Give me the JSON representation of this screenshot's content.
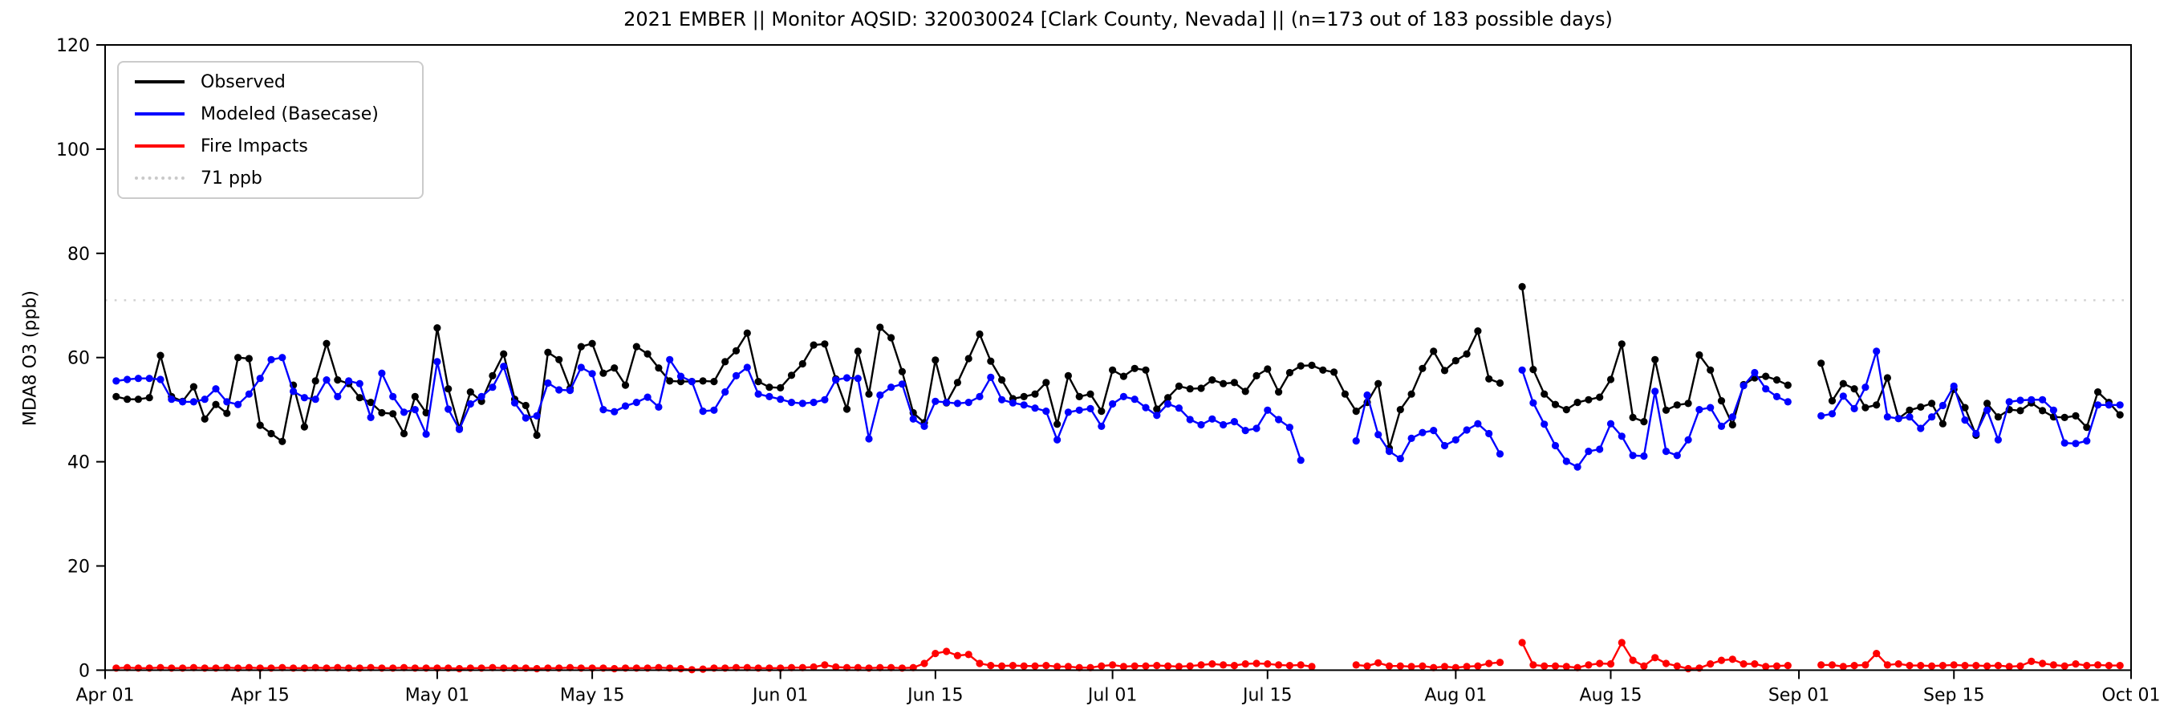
{
  "title": "2021 EMBER || Monitor AQSID: 320030024 [Clark County, Nevada] || (n=173 out of 183 possible days)",
  "axes": {
    "ylabel": "MDA8 O3 (ppb)",
    "ylim": [
      0,
      120
    ],
    "yticks": [
      0,
      20,
      40,
      60,
      80,
      100,
      120
    ],
    "grid": "off",
    "legend_position": "upper-left"
  },
  "threshold": {
    "label": "71 ppb",
    "value": 71,
    "color": "#d2d2d2"
  },
  "legend": {
    "entries": [
      {
        "label": "Observed",
        "color": "#000000",
        "style": "solid"
      },
      {
        "label": "Modeled (Basecase)",
        "color": "#0000ff",
        "style": "solid"
      },
      {
        "label": "Fire Impacts",
        "color": "#ff0000",
        "style": "solid"
      },
      {
        "label": "71 ppb",
        "color": "#d2d2d2",
        "style": "dotted"
      }
    ]
  },
  "chart_data": {
    "type": "line",
    "title": "2021 EMBER || Monitor AQSID: 320030024 [Clark County, Nevada] || (n=173 out of 183 possible days)",
    "xlabel": "",
    "ylabel": "MDA8 O3 (ppb)",
    "ylim": [
      0,
      120
    ],
    "yticks": [
      0,
      20,
      40,
      60,
      80,
      100,
      120
    ],
    "start_date": "2021-04-01",
    "n_days": 183,
    "x_ticks": [
      {
        "label": "Apr 01",
        "day": 0
      },
      {
        "label": "Apr 15",
        "day": 14
      },
      {
        "label": "May 01",
        "day": 30
      },
      {
        "label": "May 15",
        "day": 44
      },
      {
        "label": "Jun 01",
        "day": 61
      },
      {
        "label": "Jun 15",
        "day": 75
      },
      {
        "label": "Jul 01",
        "day": 91
      },
      {
        "label": "Jul 15",
        "day": 105
      },
      {
        "label": "Aug 01",
        "day": 122
      },
      {
        "label": "Aug 15",
        "day": 136
      },
      {
        "label": "Sep 01",
        "day": 153
      },
      {
        "label": "Sep 15",
        "day": 167
      },
      {
        "label": "Oct 01",
        "day": 183
      }
    ],
    "threshold_line": {
      "label": "71 ppb",
      "value": 71
    },
    "series": [
      {
        "name": "Observed",
        "color": "#000000",
        "values": [
          null,
          52.5,
          52,
          52,
          52.3,
          60.4,
          52.5,
          51.6,
          54.4,
          48.2,
          51,
          49.3,
          60,
          59.8,
          47,
          45.4,
          43.9,
          54.7,
          46.7,
          55.5,
          62.7,
          55.7,
          55,
          52.3,
          51.4,
          49.4,
          49.2,
          45.4,
          52.5,
          49.4,
          65.7,
          54,
          46.4,
          53.4,
          51.6,
          56.5,
          60.7,
          52,
          50.8,
          45.1,
          61,
          59.6,
          54.1,
          62.1,
          62.7,
          57,
          58,
          54.7,
          62.1,
          60.7,
          58,
          55.5,
          55.4,
          55.4,
          55.5,
          55.4,
          59.2,
          61.3,
          64.7,
          55.4,
          54.3,
          54.2,
          56.6,
          58.8,
          62.4,
          62.6,
          55.9,
          50.1,
          61.2,
          53,
          65.8,
          63.8,
          57.3,
          49.4,
          47.5,
          59.5,
          51.3,
          55.2,
          59.8,
          64.5,
          59.3,
          55.7,
          52.1,
          52.5,
          53,
          55.2,
          47.2,
          56.5,
          52.5,
          53,
          49.7,
          57.6,
          56.4,
          57.9,
          57.6,
          50.1,
          52.3,
          54.5,
          54,
          54.1,
          55.7,
          55,
          55.2,
          53.5,
          56.5,
          57.8,
          53.4,
          57.1,
          58.4,
          58.5,
          57.6,
          57.2,
          53,
          49.7,
          51.4,
          55,
          42.6,
          50,
          53,
          57.9,
          61.2,
          57.5,
          59.4,
          60.7,
          65.1,
          55.9,
          55.1,
          null,
          73.6,
          57.7,
          53,
          51,
          50,
          51.4,
          51.9,
          52.4,
          55.8,
          62.6,
          48.5,
          47.7,
          59.6,
          49.9,
          50.9,
          51.2,
          60.5,
          57.6,
          51.7,
          47.1,
          54.8,
          56.1,
          56.4,
          55.7,
          54.7,
          null,
          null,
          58.9,
          51.7,
          55,
          54,
          50.4,
          50.9,
          56.1,
          48.3,
          49.9,
          50.5,
          51.2,
          47.3,
          53.9,
          50.4,
          45.1,
          51.2,
          48.6,
          50,
          49.8,
          51.3,
          49.8,
          48.6,
          48.5,
          48.8,
          46.6,
          53.4,
          51.4,
          49
        ]
      },
      {
        "name": "Modeled (Basecase)",
        "color": "#0000ff",
        "values": [
          null,
          55.5,
          55.8,
          56,
          56,
          55.8,
          52,
          51.5,
          51.5,
          52,
          54,
          51.5,
          51,
          53,
          56,
          59.6,
          60,
          53.5,
          52.3,
          52,
          55.7,
          52.5,
          55.5,
          55,
          48.5,
          57,
          52.5,
          49.5,
          50,
          45.3,
          59.2,
          50.1,
          46.2,
          51.1,
          52.5,
          54.3,
          58.3,
          51.3,
          48.4,
          48.8,
          55.1,
          53.8,
          53.7,
          58.1,
          56.9,
          50,
          49.6,
          50.7,
          51.4,
          52.4,
          50.5,
          59.6,
          56.4,
          55.4,
          49.7,
          49.9,
          53.4,
          56.5,
          58.1,
          53,
          52.5,
          52,
          51.4,
          51.2,
          51.4,
          51.9,
          55.7,
          56.1,
          56,
          44.4,
          52.8,
          54.3,
          54.9,
          48.2,
          46.8,
          51.6,
          51.4,
          51.2,
          51.4,
          52.5,
          56.2,
          51.9,
          51.3,
          50.9,
          50.3,
          49.7,
          44.2,
          49.5,
          49.9,
          50.2,
          46.8,
          51.1,
          52.5,
          52,
          50.4,
          48.9,
          51.1,
          50.3,
          48.1,
          47.1,
          48.2,
          47.1,
          47.7,
          46,
          46.4,
          49.9,
          48.1,
          46.6,
          40.3,
          null,
          null,
          null,
          null,
          44,
          52.8,
          45.2,
          42,
          40.6,
          44.5,
          45.6,
          46,
          43.1,
          44.2,
          46.1,
          47.3,
          45.4,
          41.5,
          null,
          57.6,
          51.3,
          47.2,
          43.1,
          40.1,
          39,
          42,
          42.4,
          47.3,
          44.9,
          41.2,
          41.1,
          53.5,
          42,
          41.2,
          44.2,
          50,
          50.4,
          46.8,
          48.6,
          54.6,
          57.1,
          54,
          52.5,
          51.5,
          null,
          null,
          48.8,
          49.2,
          52.6,
          50.2,
          54.3,
          61.2,
          48.6,
          48.3,
          48.6,
          46.4,
          48.6,
          50.8,
          54.5,
          48,
          45.4,
          49.9,
          44.2,
          51.5,
          51.8,
          51.9,
          51.9,
          49.9,
          43.6,
          43.5,
          44,
          50.9,
          50.9,
          50.9
        ]
      },
      {
        "name": "Fire Impacts",
        "color": "#ff0000",
        "values": [
          null,
          0.4,
          0.5,
          0.4,
          0.4,
          0.5,
          0.4,
          0.4,
          0.5,
          0.4,
          0.4,
          0.5,
          0.4,
          0.5,
          0.4,
          0.4,
          0.5,
          0.4,
          0.4,
          0.5,
          0.4,
          0.5,
          0.4,
          0.4,
          0.5,
          0.4,
          0.4,
          0.5,
          0.4,
          0.4,
          0.4,
          0.4,
          0.3,
          0.4,
          0.4,
          0.5,
          0.4,
          0.4,
          0.4,
          0.3,
          0.4,
          0.4,
          0.5,
          0.4,
          0.4,
          0.4,
          0.3,
          0.4,
          0.4,
          0.4,
          0.5,
          0.4,
          0.3,
          0.1,
          0.2,
          0.4,
          0.4,
          0.5,
          0.5,
          0.4,
          0.4,
          0.4,
          0.5,
          0.5,
          0.6,
          1,
          0.6,
          0.5,
          0.5,
          0.4,
          0.5,
          0.5,
          0.4,
          0.5,
          1.3,
          3.2,
          3.6,
          2.8,
          3,
          1.3,
          0.9,
          0.8,
          0.9,
          0.8,
          0.8,
          0.9,
          0.7,
          0.7,
          0.5,
          0.5,
          0.8,
          1,
          0.7,
          0.8,
          0.8,
          0.9,
          0.8,
          0.7,
          0.8,
          1,
          1.2,
          1,
          0.9,
          1.2,
          1.3,
          1.2,
          1,
          0.9,
          1,
          0.7,
          null,
          null,
          null,
          1,
          0.8,
          1.4,
          0.8,
          0.8,
          0.7,
          0.8,
          0.5,
          0.7,
          0.5,
          0.7,
          0.8,
          1.3,
          1.5,
          null,
          5.3,
          1,
          0.8,
          0.8,
          0.7,
          0.5,
          1,
          1.3,
          1.2,
          5.3,
          1.9,
          0.8,
          2.4,
          1.3,
          0.8,
          0.3,
          0.4,
          1.2,
          1.9,
          2.1,
          1.2,
          1.2,
          0.7,
          0.8,
          0.9,
          null,
          null,
          1,
          1,
          0.7,
          0.9,
          1,
          3.2,
          1,
          1.2,
          0.9,
          0.9,
          0.8,
          0.9,
          1,
          0.9,
          0.9,
          0.8,
          0.9,
          0.7,
          0.8,
          1.7,
          1.3,
          1,
          0.8,
          1.2,
          0.9,
          1,
          0.9,
          0.9
        ]
      }
    ]
  }
}
